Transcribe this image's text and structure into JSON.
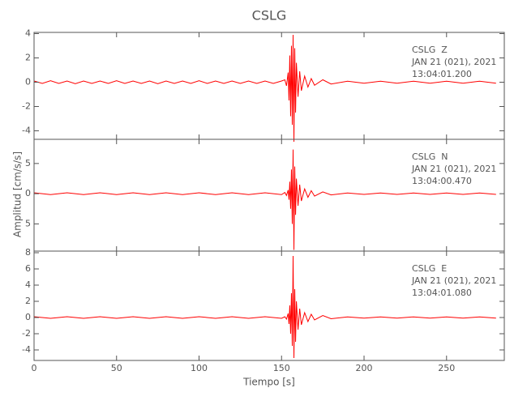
{
  "figure": {
    "title": "CSLG",
    "xlabel": "Tiempo [s]",
    "ylabel": "Amplitud [cm/s/s]"
  },
  "chart_data": [
    {
      "type": "line",
      "ylim": [
        -4.7,
        4.1
      ],
      "yticks": [
        -4,
        -2,
        0,
        2,
        4
      ],
      "annotations": [
        "CSLG  Z",
        "JAN 21 (021), 2021",
        "13:04:01.200"
      ],
      "x": [
        0,
        5,
        10,
        15,
        20,
        25,
        30,
        35,
        40,
        45,
        50,
        55,
        60,
        65,
        70,
        75,
        80,
        85,
        90,
        95,
        100,
        105,
        110,
        115,
        120,
        125,
        130,
        135,
        140,
        145,
        150,
        152,
        153,
        154,
        154.5,
        155,
        155.5,
        156,
        156.5,
        157,
        157.5,
        158,
        158.5,
        159,
        160,
        161,
        162,
        164,
        166,
        168,
        170,
        175,
        180,
        190,
        200,
        210,
        220,
        230,
        240,
        250,
        260,
        270,
        280
      ],
      "series": [
        {
          "color": "#ff0000",
          "values": [
            0.1,
            -0.1,
            0.12,
            -0.1,
            0.1,
            -0.12,
            0.1,
            -0.1,
            0.1,
            -0.1,
            0.12,
            -0.1,
            0.1,
            -0.1,
            0.1,
            -0.12,
            0.1,
            -0.1,
            0.1,
            -0.1,
            0.12,
            -0.1,
            0.1,
            -0.1,
            0.1,
            -0.1,
            0.1,
            -0.1,
            0.1,
            -0.1,
            0.1,
            0.2,
            -0.3,
            0.8,
            -1.5,
            2.2,
            -2.8,
            3.0,
            -3.5,
            3.9,
            -4.9,
            2.8,
            -2.5,
            1.6,
            -1.2,
            0.9,
            -0.7,
            0.5,
            -0.4,
            0.3,
            -0.25,
            0.2,
            -0.15,
            0.08,
            -0.08,
            0.08,
            -0.08,
            0.08,
            -0.08,
            0.08,
            -0.08,
            0.08,
            -0.08
          ]
        }
      ]
    },
    {
      "type": "line",
      "ylim": [
        -9.5,
        9
      ],
      "yticks": [
        {
          "value": -5,
          "label": "5"
        },
        0,
        5
      ],
      "annotations": [
        "CSLG  N",
        "JAN 21 (021), 2021",
        "13:04:00.470"
      ],
      "x": [
        0,
        10,
        20,
        30,
        40,
        50,
        60,
        70,
        80,
        90,
        100,
        110,
        120,
        130,
        140,
        150,
        152,
        153,
        154,
        154.5,
        155,
        155.5,
        156,
        156.5,
        157,
        157.5,
        158,
        158.5,
        159,
        160,
        161,
        162,
        164,
        166,
        168,
        170,
        175,
        180,
        190,
        200,
        210,
        220,
        230,
        240,
        250,
        260,
        270,
        280
      ],
      "series": [
        {
          "color": "#ff0000",
          "values": [
            0.15,
            -0.15,
            0.15,
            -0.15,
            0.15,
            -0.15,
            0.15,
            -0.15,
            0.15,
            -0.15,
            0.15,
            -0.15,
            0.15,
            -0.15,
            0.15,
            -0.15,
            0.2,
            -0.3,
            0.6,
            -1,
            2,
            -2.5,
            4,
            -5,
            7.3,
            -9.3,
            4.5,
            -3.5,
            2.5,
            -2,
            1.5,
            -1.2,
            0.8,
            -0.6,
            0.5,
            -0.4,
            0.3,
            -0.2,
            0.12,
            -0.12,
            0.12,
            -0.12,
            0.12,
            -0.12,
            0.12,
            -0.12,
            0.12,
            -0.12
          ]
        }
      ]
    },
    {
      "type": "line",
      "ylim": [
        -5.3,
        8.2
      ],
      "yticks": [
        -4,
        -2,
        0,
        2,
        4,
        6,
        8
      ],
      "xlim": [
        0,
        285
      ],
      "xticks": [
        0,
        50,
        100,
        150,
        200,
        250
      ],
      "annotations": [
        "CSLG  E",
        "JAN 21 (021), 2021",
        "13:04:01.080"
      ],
      "x": [
        0,
        10,
        20,
        30,
        40,
        50,
        60,
        70,
        80,
        90,
        100,
        110,
        120,
        130,
        140,
        150,
        152,
        153,
        154,
        154.5,
        155,
        155.5,
        156,
        156.5,
        157,
        157.5,
        158,
        158.5,
        159,
        160,
        161,
        162,
        164,
        166,
        168,
        170,
        175,
        180,
        190,
        200,
        210,
        220,
        230,
        240,
        250,
        260,
        270,
        280
      ],
      "series": [
        {
          "color": "#ff0000",
          "values": [
            0.1,
            -0.1,
            0.1,
            -0.1,
            0.1,
            -0.1,
            0.1,
            -0.1,
            0.1,
            -0.1,
            0.1,
            -0.1,
            0.1,
            -0.1,
            0.1,
            -0.1,
            0.1,
            -0.2,
            0.5,
            -0.8,
            1.5,
            -2,
            3,
            -3.5,
            7.6,
            -5.0,
            3.5,
            -3,
            2,
            -1.5,
            1.1,
            -0.9,
            0.6,
            -0.5,
            0.4,
            -0.3,
            0.25,
            -0.15,
            0.08,
            -0.08,
            0.08,
            -0.08,
            0.08,
            -0.08,
            0.08,
            -0.08,
            0.08,
            -0.08
          ]
        }
      ]
    }
  ]
}
